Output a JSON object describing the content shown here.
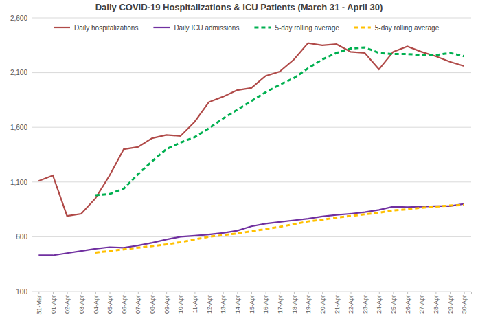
{
  "chart_data": {
    "type": "line",
    "title": "Daily COVID-19 Hospitalizations & ICU Patients (March 31 - April 30)",
    "categories": [
      "31-Mar",
      "01-Apr",
      "02-Apr",
      "03-Apr",
      "04-Apr",
      "05-Apr",
      "06-Apr",
      "07-Apr",
      "08-Apr",
      "09-Apr",
      "10-Apr",
      "11-Apr",
      "12-Apr",
      "13-Apr",
      "14-Apr",
      "15-Apr",
      "16-Apr",
      "17-Apr",
      "18-Apr",
      "19-Apr",
      "20-Apr",
      "21-Apr",
      "22-Apr",
      "23-Apr",
      "24-Apr",
      "25-Apr",
      "26-Apr",
      "27-Apr",
      "28-Apr",
      "29-Apr",
      "30-Apr"
    ],
    "series": [
      {
        "name": "Daily hospitalizations",
        "color": "#b04a48",
        "line_style": "solid",
        "values": [
          1110,
          1160,
          790,
          810,
          950,
          1160,
          1400,
          1420,
          1500,
          1530,
          1520,
          1650,
          1830,
          1880,
          1940,
          1960,
          2070,
          2110,
          2220,
          2370,
          2350,
          2360,
          2290,
          2280,
          2130,
          2290,
          2340,
          2290,
          2250,
          2200,
          2160
        ]
      },
      {
        "name": "Daily ICU admissions",
        "color": "#7030a0",
        "line_style": "solid",
        "values": [
          430,
          430,
          450,
          470,
          490,
          505,
          500,
          520,
          545,
          575,
          600,
          610,
          620,
          635,
          655,
          695,
          720,
          735,
          750,
          765,
          785,
          800,
          810,
          825,
          845,
          875,
          870,
          875,
          880,
          880,
          900
        ]
      },
      {
        "name": "5-day rolling average",
        "color": "#00b050",
        "line_style": "dashed",
        "values": [
          null,
          null,
          null,
          null,
          980,
          990,
          1040,
          1170,
          1290,
          1400,
          1460,
          1510,
          1590,
          1680,
          1760,
          1840,
          1920,
          1990,
          2050,
          2140,
          2220,
          2280,
          2320,
          2330,
          2280,
          2270,
          2270,
          2260,
          2260,
          2280,
          2250
        ]
      },
      {
        "name": "5-day rolling average",
        "color": "#ffc000",
        "line_style": "dashed",
        "values": [
          null,
          null,
          null,
          null,
          455,
          470,
          485,
          500,
          515,
          530,
          550,
          575,
          600,
          615,
          630,
          650,
          670,
          690,
          715,
          740,
          755,
          775,
          790,
          805,
          820,
          840,
          850,
          865,
          875,
          885,
          890
        ]
      }
    ],
    "ylim": [
      100,
      2600
    ],
    "yticks": [
      100,
      600,
      {
        "value": 1100,
        "label": "1,100"
      },
      {
        "value": 1600,
        "label": "1,600"
      },
      {
        "value": 2100,
        "label": "2,100"
      },
      {
        "value": 2600,
        "label": "2,600"
      }
    ],
    "grid": true,
    "legend": "top"
  }
}
